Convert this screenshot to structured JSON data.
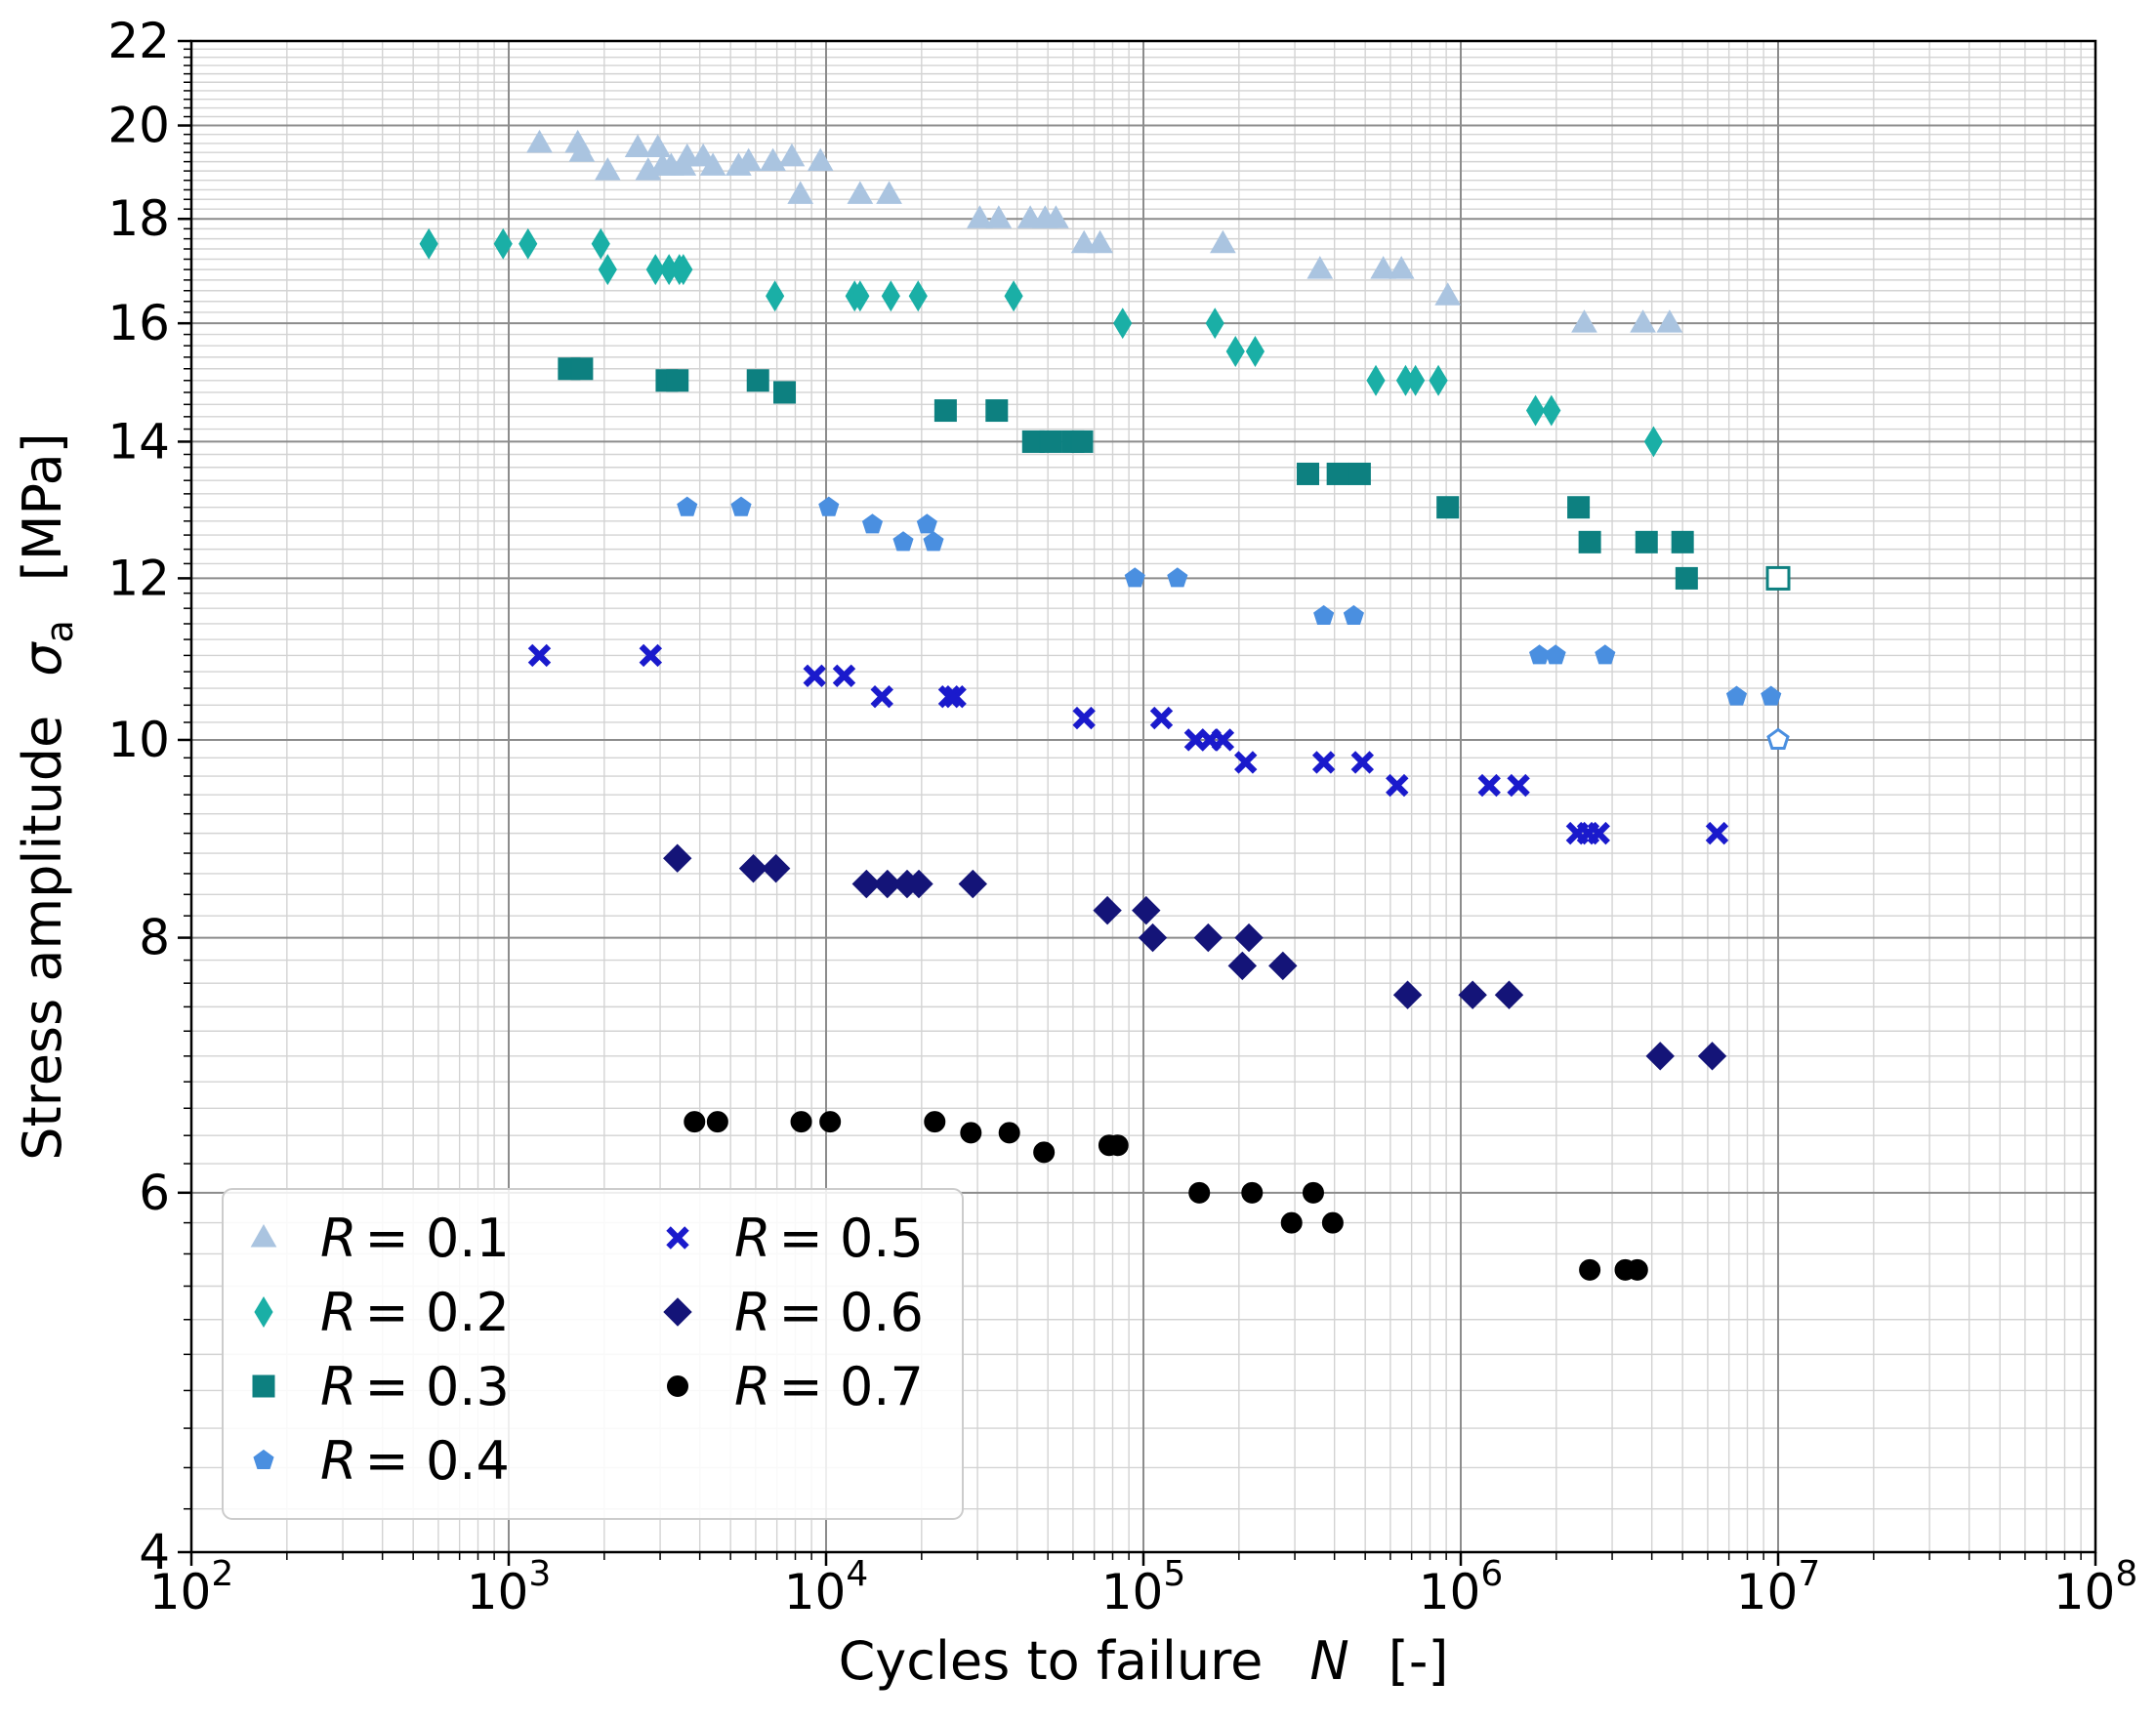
{
  "chart_data": {
    "type": "scatter",
    "title": "",
    "xlabel": "Cycles to failure",
    "xlabel_symbol": "N",
    "xlabel_unit": "[-]",
    "ylabel": "Stress amplitude",
    "ylabel_symbol": "σ",
    "ylabel_subscript": "a",
    "ylabel_unit": "[MPa]",
    "xscale": "log",
    "yscale": "log",
    "xlim": [
      100,
      100000000
    ],
    "ylim": [
      4,
      22
    ],
    "grid": true,
    "legend_position": "lower-left",
    "x_ticks": [
      {
        "value": 100,
        "base": "10",
        "exp": "2"
      },
      {
        "value": 1000,
        "base": "10",
        "exp": "3"
      },
      {
        "value": 10000,
        "base": "10",
        "exp": "4"
      },
      {
        "value": 100000,
        "base": "10",
        "exp": "5"
      },
      {
        "value": 1000000,
        "base": "10",
        "exp": "6"
      },
      {
        "value": 10000000,
        "base": "10",
        "exp": "7"
      },
      {
        "value": 100000000,
        "base": "10",
        "exp": "8"
      }
    ],
    "y_ticks": [
      {
        "value": 4,
        "label": "4"
      },
      {
        "value": 6,
        "label": "6"
      },
      {
        "value": 8,
        "label": "8"
      },
      {
        "value": 10,
        "label": "10"
      },
      {
        "value": 12,
        "label": "12"
      },
      {
        "value": 14,
        "label": "14"
      },
      {
        "value": 16,
        "label": "16"
      },
      {
        "value": 18,
        "label": "18"
      },
      {
        "value": 20,
        "label": "20"
      },
      {
        "value": 22,
        "label": "22"
      }
    ],
    "series": [
      {
        "name": "R = 0.1",
        "r_symbol": "R",
        "r_value": "0.1",
        "marker": "triangle",
        "color": "#aac4e0",
        "points": [
          [
            1250,
            19.6
          ],
          [
            1650,
            19.6
          ],
          [
            1700,
            19.4
          ],
          [
            2050,
            19.0
          ],
          [
            2550,
            19.5
          ],
          [
            2750,
            19.0
          ],
          [
            2950,
            19.5
          ],
          [
            3050,
            19.1
          ],
          [
            3250,
            19.1
          ],
          [
            3550,
            19.1
          ],
          [
            3650,
            19.3
          ],
          [
            4100,
            19.3
          ],
          [
            4400,
            19.1
          ],
          [
            5300,
            19.1
          ],
          [
            5700,
            19.2
          ],
          [
            6800,
            19.2
          ],
          [
            7800,
            19.3
          ],
          [
            8300,
            18.5
          ],
          [
            9600,
            19.2
          ],
          [
            12800,
            18.5
          ],
          [
            15800,
            18.5
          ],
          [
            30500,
            18.0
          ],
          [
            35000,
            18.0
          ],
          [
            44000,
            18.0
          ],
          [
            49000,
            18.0
          ],
          [
            53000,
            18.0
          ],
          [
            65000,
            17.5
          ],
          [
            73000,
            17.5
          ],
          [
            178000,
            17.5
          ],
          [
            360000,
            17.0
          ],
          [
            570000,
            17.0
          ],
          [
            650000,
            17.0
          ],
          [
            910000,
            16.5
          ],
          [
            2450000,
            16.0
          ],
          [
            3750000,
            16.0
          ],
          [
            4550000,
            16.0
          ]
        ],
        "runouts": []
      },
      {
        "name": "R = 0.2",
        "r_symbol": "R",
        "r_value": "0.2",
        "marker": "thin-diamond",
        "color": "#1aafa6",
        "points": [
          [
            560,
            17.5
          ],
          [
            960,
            17.5
          ],
          [
            1150,
            17.5
          ],
          [
            1950,
            17.5
          ],
          [
            2050,
            17.0
          ],
          [
            2900,
            17.0
          ],
          [
            3200,
            17.0
          ],
          [
            3450,
            17.0
          ],
          [
            3550,
            17.0
          ],
          [
            6900,
            16.5
          ],
          [
            12300,
            16.5
          ],
          [
            12800,
            16.5
          ],
          [
            16000,
            16.5
          ],
          [
            19500,
            16.5
          ],
          [
            39000,
            16.5
          ],
          [
            86000,
            16.0
          ],
          [
            168000,
            16.0
          ],
          [
            195000,
            15.5
          ],
          [
            225000,
            15.5
          ],
          [
            540000,
            15.0
          ],
          [
            670000,
            15.0
          ],
          [
            720000,
            15.0
          ],
          [
            850000,
            15.0
          ],
          [
            1720000,
            14.5
          ],
          [
            1930000,
            14.5
          ],
          [
            4050000,
            14.0
          ]
        ],
        "runouts": []
      },
      {
        "name": "R = 0.3",
        "r_symbol": "R",
        "r_value": "0.3",
        "marker": "square",
        "color": "#0d8080",
        "points": [
          [
            1550,
            15.2
          ],
          [
            1700,
            15.2
          ],
          [
            3150,
            15.0
          ],
          [
            3400,
            15.0
          ],
          [
            6100,
            15.0
          ],
          [
            7400,
            14.8
          ],
          [
            23800,
            14.5
          ],
          [
            34500,
            14.5
          ],
          [
            45000,
            14.0
          ],
          [
            51000,
            14.0
          ],
          [
            60000,
            14.0
          ],
          [
            64000,
            14.0
          ],
          [
            330000,
            13.5
          ],
          [
            410000,
            13.5
          ],
          [
            480000,
            13.5
          ],
          [
            910000,
            13.0
          ],
          [
            2350000,
            13.0
          ],
          [
            2550000,
            12.5
          ],
          [
            3850000,
            12.5
          ],
          [
            5000000,
            12.5
          ],
          [
            5150000,
            12.0
          ]
        ],
        "runouts": [
          [
            10000000,
            12.0
          ]
        ]
      },
      {
        "name": "R = 0.4",
        "r_symbol": "R",
        "r_value": "0.4",
        "marker": "pentagon",
        "color": "#4a8fe0",
        "points": [
          [
            3650,
            13.0
          ],
          [
            5400,
            13.0
          ],
          [
            10200,
            13.0
          ],
          [
            14000,
            12.75
          ],
          [
            17500,
            12.5
          ],
          [
            20800,
            12.75
          ],
          [
            21800,
            12.5
          ],
          [
            94000,
            12.0
          ],
          [
            128000,
            12.0
          ],
          [
            370000,
            11.5
          ],
          [
            460000,
            11.5
          ],
          [
            1770000,
            11.0
          ],
          [
            1990000,
            11.0
          ],
          [
            2850000,
            11.0
          ],
          [
            7400000,
            10.5
          ],
          [
            9500000,
            10.5
          ]
        ],
        "runouts": [
          [
            10000000,
            10.0
          ]
        ]
      },
      {
        "name": "R = 0.5",
        "r_symbol": "R",
        "r_value": "0.5",
        "marker": "x-filled",
        "color": "#1a1acc",
        "points": [
          [
            1250,
            11.0
          ],
          [
            2800,
            11.0
          ],
          [
            9200,
            10.75
          ],
          [
            11400,
            10.75
          ],
          [
            15000,
            10.5
          ],
          [
            24500,
            10.5
          ],
          [
            25500,
            10.5
          ],
          [
            65000,
            10.25
          ],
          [
            114000,
            10.25
          ],
          [
            146000,
            10.0
          ],
          [
            162000,
            10.0
          ],
          [
            178000,
            10.0
          ],
          [
            210000,
            9.75
          ],
          [
            370000,
            9.75
          ],
          [
            490000,
            9.75
          ],
          [
            630000,
            9.5
          ],
          [
            1230000,
            9.5
          ],
          [
            1520000,
            9.5
          ],
          [
            2330000,
            9.0
          ],
          [
            2520000,
            9.0
          ],
          [
            2720000,
            9.0
          ],
          [
            6420000,
            9.0
          ]
        ],
        "runouts": []
      },
      {
        "name": "R = 0.6",
        "r_symbol": "R",
        "r_value": "0.6",
        "marker": "diamond",
        "color": "#141478",
        "points": [
          [
            3400,
            8.75
          ],
          [
            5900,
            8.65
          ],
          [
            6950,
            8.65
          ],
          [
            13400,
            8.5
          ],
          [
            15600,
            8.5
          ],
          [
            18000,
            8.5
          ],
          [
            19600,
            8.5
          ],
          [
            29000,
            8.5
          ],
          [
            77000,
            8.25
          ],
          [
            102000,
            8.25
          ],
          [
            107000,
            8.0
          ],
          [
            160000,
            8.0
          ],
          [
            205000,
            7.75
          ],
          [
            215000,
            8.0
          ],
          [
            275000,
            7.75
          ],
          [
            680000,
            7.5
          ],
          [
            1090000,
            7.5
          ],
          [
            1420000,
            7.5
          ],
          [
            4250000,
            7.0
          ],
          [
            6200000,
            7.0
          ]
        ],
        "runouts": []
      },
      {
        "name": "R = 0.7",
        "r_symbol": "R",
        "r_value": "0.7",
        "marker": "circle",
        "color": "#000000",
        "points": [
          [
            3850,
            6.5
          ],
          [
            4550,
            6.5
          ],
          [
            8350,
            6.5
          ],
          [
            10300,
            6.5
          ],
          [
            22000,
            6.5
          ],
          [
            28600,
            6.42
          ],
          [
            37800,
            6.42
          ],
          [
            48600,
            6.28
          ],
          [
            78000,
            6.33
          ],
          [
            83000,
            6.33
          ],
          [
            150000,
            6.0
          ],
          [
            220000,
            6.0
          ],
          [
            293000,
            5.8
          ],
          [
            343000,
            6.0
          ],
          [
            395000,
            5.8
          ],
          [
            2550000,
            5.5
          ],
          [
            3300000,
            5.5
          ],
          [
            3600000,
            5.5
          ]
        ],
        "runouts": []
      }
    ]
  }
}
